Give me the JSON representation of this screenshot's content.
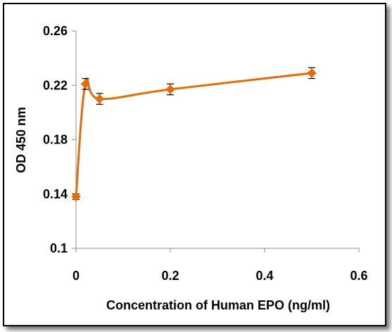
{
  "chart_data": {
    "type": "line",
    "title": "",
    "xlabel": "Concentration of Human EPO (ng/ml)",
    "ylabel": "OD  450 nm",
    "xlim": [
      0,
      0.6
    ],
    "ylim": [
      0.1,
      0.26
    ],
    "x_ticks": [
      "0",
      "0.2",
      "0.4",
      "0.6"
    ],
    "y_ticks": [
      "0.1",
      "0.14",
      "0.18",
      "0.22",
      "0.26"
    ],
    "grid": false,
    "legend": "none",
    "series": [
      {
        "color": "#E46C0A",
        "marker": "diamond",
        "smooth": true,
        "points": [
          {
            "x": 0.0,
            "y": 0.138,
            "err": 0.002
          },
          {
            "x": 0.02,
            "y": 0.221,
            "err": 0.004
          },
          {
            "x": 0.05,
            "y": 0.21,
            "err": 0.004
          },
          {
            "x": 0.2,
            "y": 0.217,
            "err": 0.004
          },
          {
            "x": 0.5,
            "y": 0.229,
            "err": 0.004
          }
        ]
      }
    ]
  }
}
